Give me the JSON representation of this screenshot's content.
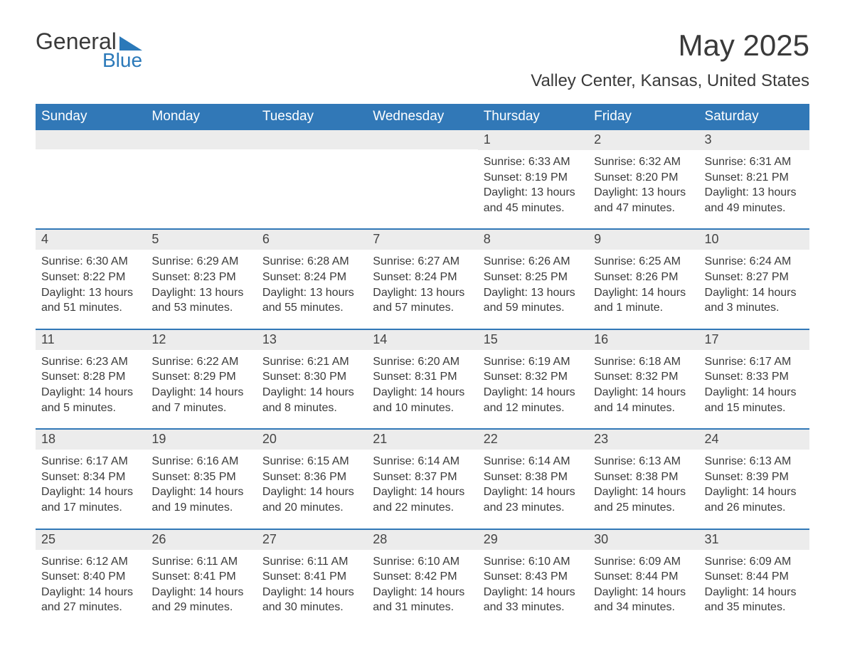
{
  "colors": {
    "brand_blue": "#3178b7",
    "logo_blue": "#2b79b9",
    "text": "#3a3a3a",
    "daynum_bg": "#ececec",
    "background": "#ffffff"
  },
  "typography": {
    "month_title_pt": 42,
    "location_pt": 24,
    "dow_pt": 19,
    "daynum_pt": 18,
    "body_pt": 16
  },
  "logo": {
    "general": "General",
    "blue": "Blue"
  },
  "title": "May 2025",
  "location": "Valley Center, Kansas, United States",
  "days_of_week": [
    "Sunday",
    "Monday",
    "Tuesday",
    "Wednesday",
    "Thursday",
    "Friday",
    "Saturday"
  ],
  "weeks": [
    [
      null,
      null,
      null,
      null,
      {
        "n": "1",
        "sunrise": "Sunrise: 6:33 AM",
        "sunset": "Sunset: 8:19 PM",
        "day1": "Daylight: 13 hours",
        "day2": "and 45 minutes."
      },
      {
        "n": "2",
        "sunrise": "Sunrise: 6:32 AM",
        "sunset": "Sunset: 8:20 PM",
        "day1": "Daylight: 13 hours",
        "day2": "and 47 minutes."
      },
      {
        "n": "3",
        "sunrise": "Sunrise: 6:31 AM",
        "sunset": "Sunset: 8:21 PM",
        "day1": "Daylight: 13 hours",
        "day2": "and 49 minutes."
      }
    ],
    [
      {
        "n": "4",
        "sunrise": "Sunrise: 6:30 AM",
        "sunset": "Sunset: 8:22 PM",
        "day1": "Daylight: 13 hours",
        "day2": "and 51 minutes."
      },
      {
        "n": "5",
        "sunrise": "Sunrise: 6:29 AM",
        "sunset": "Sunset: 8:23 PM",
        "day1": "Daylight: 13 hours",
        "day2": "and 53 minutes."
      },
      {
        "n": "6",
        "sunrise": "Sunrise: 6:28 AM",
        "sunset": "Sunset: 8:24 PM",
        "day1": "Daylight: 13 hours",
        "day2": "and 55 minutes."
      },
      {
        "n": "7",
        "sunrise": "Sunrise: 6:27 AM",
        "sunset": "Sunset: 8:24 PM",
        "day1": "Daylight: 13 hours",
        "day2": "and 57 minutes."
      },
      {
        "n": "8",
        "sunrise": "Sunrise: 6:26 AM",
        "sunset": "Sunset: 8:25 PM",
        "day1": "Daylight: 13 hours",
        "day2": "and 59 minutes."
      },
      {
        "n": "9",
        "sunrise": "Sunrise: 6:25 AM",
        "sunset": "Sunset: 8:26 PM",
        "day1": "Daylight: 14 hours",
        "day2": "and 1 minute."
      },
      {
        "n": "10",
        "sunrise": "Sunrise: 6:24 AM",
        "sunset": "Sunset: 8:27 PM",
        "day1": "Daylight: 14 hours",
        "day2": "and 3 minutes."
      }
    ],
    [
      {
        "n": "11",
        "sunrise": "Sunrise: 6:23 AM",
        "sunset": "Sunset: 8:28 PM",
        "day1": "Daylight: 14 hours",
        "day2": "and 5 minutes."
      },
      {
        "n": "12",
        "sunrise": "Sunrise: 6:22 AM",
        "sunset": "Sunset: 8:29 PM",
        "day1": "Daylight: 14 hours",
        "day2": "and 7 minutes."
      },
      {
        "n": "13",
        "sunrise": "Sunrise: 6:21 AM",
        "sunset": "Sunset: 8:30 PM",
        "day1": "Daylight: 14 hours",
        "day2": "and 8 minutes."
      },
      {
        "n": "14",
        "sunrise": "Sunrise: 6:20 AM",
        "sunset": "Sunset: 8:31 PM",
        "day1": "Daylight: 14 hours",
        "day2": "and 10 minutes."
      },
      {
        "n": "15",
        "sunrise": "Sunrise: 6:19 AM",
        "sunset": "Sunset: 8:32 PM",
        "day1": "Daylight: 14 hours",
        "day2": "and 12 minutes."
      },
      {
        "n": "16",
        "sunrise": "Sunrise: 6:18 AM",
        "sunset": "Sunset: 8:32 PM",
        "day1": "Daylight: 14 hours",
        "day2": "and 14 minutes."
      },
      {
        "n": "17",
        "sunrise": "Sunrise: 6:17 AM",
        "sunset": "Sunset: 8:33 PM",
        "day1": "Daylight: 14 hours",
        "day2": "and 15 minutes."
      }
    ],
    [
      {
        "n": "18",
        "sunrise": "Sunrise: 6:17 AM",
        "sunset": "Sunset: 8:34 PM",
        "day1": "Daylight: 14 hours",
        "day2": "and 17 minutes."
      },
      {
        "n": "19",
        "sunrise": "Sunrise: 6:16 AM",
        "sunset": "Sunset: 8:35 PM",
        "day1": "Daylight: 14 hours",
        "day2": "and 19 minutes."
      },
      {
        "n": "20",
        "sunrise": "Sunrise: 6:15 AM",
        "sunset": "Sunset: 8:36 PM",
        "day1": "Daylight: 14 hours",
        "day2": "and 20 minutes."
      },
      {
        "n": "21",
        "sunrise": "Sunrise: 6:14 AM",
        "sunset": "Sunset: 8:37 PM",
        "day1": "Daylight: 14 hours",
        "day2": "and 22 minutes."
      },
      {
        "n": "22",
        "sunrise": "Sunrise: 6:14 AM",
        "sunset": "Sunset: 8:38 PM",
        "day1": "Daylight: 14 hours",
        "day2": "and 23 minutes."
      },
      {
        "n": "23",
        "sunrise": "Sunrise: 6:13 AM",
        "sunset": "Sunset: 8:38 PM",
        "day1": "Daylight: 14 hours",
        "day2": "and 25 minutes."
      },
      {
        "n": "24",
        "sunrise": "Sunrise: 6:13 AM",
        "sunset": "Sunset: 8:39 PM",
        "day1": "Daylight: 14 hours",
        "day2": "and 26 minutes."
      }
    ],
    [
      {
        "n": "25",
        "sunrise": "Sunrise: 6:12 AM",
        "sunset": "Sunset: 8:40 PM",
        "day1": "Daylight: 14 hours",
        "day2": "and 27 minutes."
      },
      {
        "n": "26",
        "sunrise": "Sunrise: 6:11 AM",
        "sunset": "Sunset: 8:41 PM",
        "day1": "Daylight: 14 hours",
        "day2": "and 29 minutes."
      },
      {
        "n": "27",
        "sunrise": "Sunrise: 6:11 AM",
        "sunset": "Sunset: 8:41 PM",
        "day1": "Daylight: 14 hours",
        "day2": "and 30 minutes."
      },
      {
        "n": "28",
        "sunrise": "Sunrise: 6:10 AM",
        "sunset": "Sunset: 8:42 PM",
        "day1": "Daylight: 14 hours",
        "day2": "and 31 minutes."
      },
      {
        "n": "29",
        "sunrise": "Sunrise: 6:10 AM",
        "sunset": "Sunset: 8:43 PM",
        "day1": "Daylight: 14 hours",
        "day2": "and 33 minutes."
      },
      {
        "n": "30",
        "sunrise": "Sunrise: 6:09 AM",
        "sunset": "Sunset: 8:44 PM",
        "day1": "Daylight: 14 hours",
        "day2": "and 34 minutes."
      },
      {
        "n": "31",
        "sunrise": "Sunrise: 6:09 AM",
        "sunset": "Sunset: 8:44 PM",
        "day1": "Daylight: 14 hours",
        "day2": "and 35 minutes."
      }
    ]
  ]
}
